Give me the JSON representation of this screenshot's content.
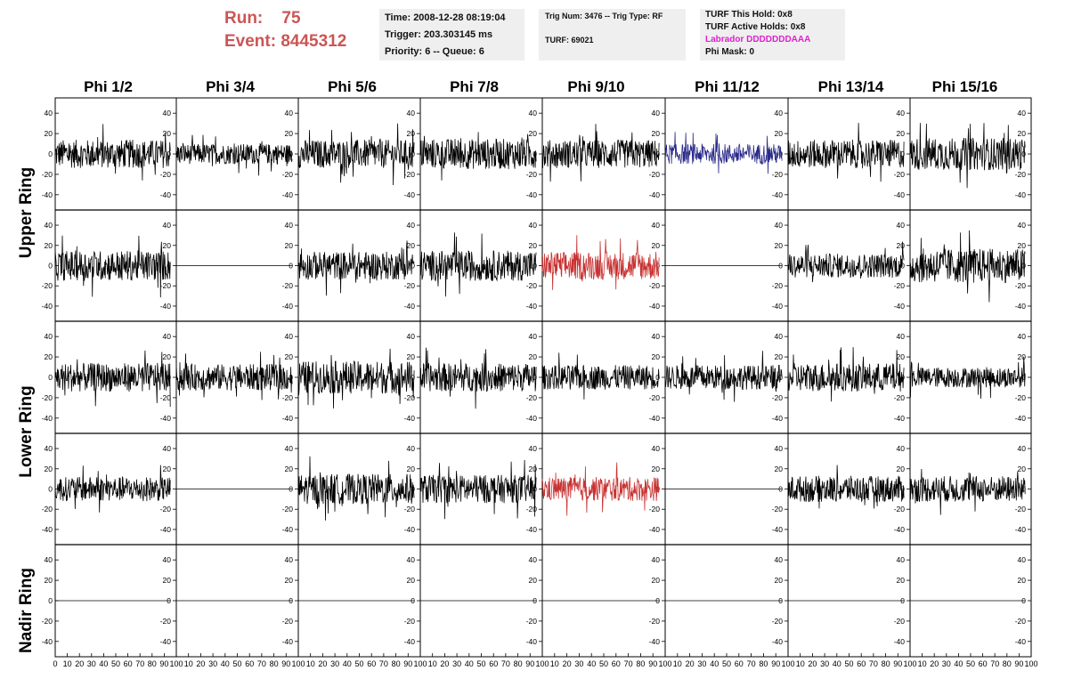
{
  "header": {
    "run_label": "Run:",
    "run_value": "75",
    "event_label": "Event:",
    "event_value": "8445312",
    "time": "Time: 2008-12-28 08:19:04",
    "trigger": "Trigger: 203.303145 ms",
    "priority": "Priority: 6 -- Queue: 6",
    "trig_num": "Trig Num: 3476 -- Trig Type: RF",
    "turf": "TURF: 69021",
    "turf_this_hold": "TURF This Hold: 0x8",
    "turf_active_holds": "TURF Active Holds: 0x8",
    "labrador": "Labrador DDDDDDDAAA",
    "phi_mask": "Phi Mask: 0"
  },
  "columns": [
    "Phi 1/2",
    "Phi 3/4",
    "Phi 5/6",
    "Phi 7/8",
    "Phi 9/10",
    "Phi 11/12",
    "Phi 13/14",
    "Phi 15/16"
  ],
  "rings": [
    "Upper Ring",
    "Lower Ring",
    "Nadir Ring"
  ],
  "y_ticks": [
    "40",
    "20",
    "0",
    "-20",
    "-40"
  ],
  "x_ticks": [
    "0",
    "10",
    "20",
    "30",
    "40",
    "50",
    "60",
    "70",
    "80",
    "90",
    "100"
  ],
  "colors": {
    "normal": "#000000",
    "blue": "#2a2a8a",
    "red": "#c83232",
    "run": "#cc5555",
    "labrador": "#e020d0"
  },
  "chart_data": {
    "type": "line",
    "xlim": [
      0,
      100
    ],
    "ylim": [
      -55,
      55
    ],
    "panel_rows": [
      {
        "ring": "Upper Ring",
        "traces": [
          {
            "column": "Phi 1/2",
            "kind": "noise",
            "amp": 14,
            "color": "normal"
          },
          {
            "column": "Phi 3/4",
            "kind": "noise",
            "amp": 10,
            "color": "normal"
          },
          {
            "column": "Phi 5/6",
            "kind": "noise",
            "amp": 14,
            "color": "normal"
          },
          {
            "column": "Phi 7/8",
            "kind": "noise",
            "amp": 15,
            "color": "normal"
          },
          {
            "column": "Phi 9/10",
            "kind": "noise",
            "amp": 14,
            "color": "normal"
          },
          {
            "column": "Phi 11/12",
            "kind": "noise",
            "amp": 10,
            "color": "blue"
          },
          {
            "column": "Phi 13/14",
            "kind": "noise",
            "amp": 14,
            "color": "normal"
          },
          {
            "column": "Phi 15/16",
            "kind": "noise",
            "amp": 16,
            "color": "normal"
          }
        ]
      },
      {
        "ring": "Upper Ring",
        "traces": [
          {
            "column": "Phi 1/2",
            "kind": "noise",
            "amp": 15,
            "color": "normal"
          },
          {
            "column": "Phi 3/4",
            "kind": "flat",
            "amp": 0,
            "color": "normal"
          },
          {
            "column": "Phi 5/6",
            "kind": "noise",
            "amp": 14,
            "color": "normal"
          },
          {
            "column": "Phi 7/8",
            "kind": "noise",
            "amp": 15,
            "color": "normal"
          },
          {
            "column": "Phi 9/10",
            "kind": "noise",
            "amp": 14,
            "color": "red"
          },
          {
            "column": "Phi 11/12",
            "kind": "flat",
            "amp": 0,
            "color": "normal"
          },
          {
            "column": "Phi 13/14",
            "kind": "noise",
            "amp": 12,
            "color": "normal"
          },
          {
            "column": "Phi 15/16",
            "kind": "noise",
            "amp": 17,
            "color": "normal"
          }
        ]
      },
      {
        "ring": "Lower Ring",
        "traces": [
          {
            "column": "Phi 1/2",
            "kind": "noise",
            "amp": 14,
            "color": "normal"
          },
          {
            "column": "Phi 3/4",
            "kind": "noise",
            "amp": 13,
            "color": "normal"
          },
          {
            "column": "Phi 5/6",
            "kind": "noise",
            "amp": 16,
            "color": "normal"
          },
          {
            "column": "Phi 7/8",
            "kind": "noise",
            "amp": 14,
            "color": "normal"
          },
          {
            "column": "Phi 9/10",
            "kind": "noise",
            "amp": 12,
            "color": "normal"
          },
          {
            "column": "Phi 11/12",
            "kind": "noise",
            "amp": 12,
            "color": "normal"
          },
          {
            "column": "Phi 13/14",
            "kind": "noise",
            "amp": 14,
            "color": "normal"
          },
          {
            "column": "Phi 15/16",
            "kind": "noise",
            "amp": 10,
            "color": "normal"
          }
        ]
      },
      {
        "ring": "Lower Ring",
        "traces": [
          {
            "column": "Phi 1/2",
            "kind": "noise",
            "amp": 12,
            "color": "normal"
          },
          {
            "column": "Phi 3/4",
            "kind": "flat",
            "amp": 0,
            "color": "normal"
          },
          {
            "column": "Phi 5/6",
            "kind": "noise",
            "amp": 15,
            "color": "normal"
          },
          {
            "column": "Phi 7/8",
            "kind": "noise",
            "amp": 14,
            "color": "normal"
          },
          {
            "column": "Phi 9/10",
            "kind": "noise",
            "amp": 12,
            "color": "red"
          },
          {
            "column": "Phi 11/12",
            "kind": "flat",
            "amp": 0,
            "color": "normal"
          },
          {
            "column": "Phi 13/14",
            "kind": "noise",
            "amp": 13,
            "color": "normal"
          },
          {
            "column": "Phi 15/16",
            "kind": "noise",
            "amp": 13,
            "color": "normal"
          }
        ]
      },
      {
        "ring": "Nadir Ring",
        "traces": [
          {
            "column": "Phi 1/2",
            "kind": "flat",
            "amp": 0,
            "color": "normal"
          },
          {
            "column": "Phi 3/4",
            "kind": "flat",
            "amp": 0,
            "color": "normal"
          },
          {
            "column": "Phi 5/6",
            "kind": "flat",
            "amp": 0,
            "color": "normal"
          },
          {
            "column": "Phi 7/8",
            "kind": "flat",
            "amp": 0,
            "color": "normal"
          },
          {
            "column": "Phi 9/10",
            "kind": "flat",
            "amp": 0,
            "color": "normal"
          },
          {
            "column": "Phi 11/12",
            "kind": "flat",
            "amp": 0,
            "color": "normal"
          },
          {
            "column": "Phi 13/14",
            "kind": "flat",
            "amp": 0,
            "color": "normal"
          },
          {
            "column": "Phi 15/16",
            "kind": "flat",
            "amp": 0,
            "color": "normal"
          }
        ]
      }
    ]
  }
}
